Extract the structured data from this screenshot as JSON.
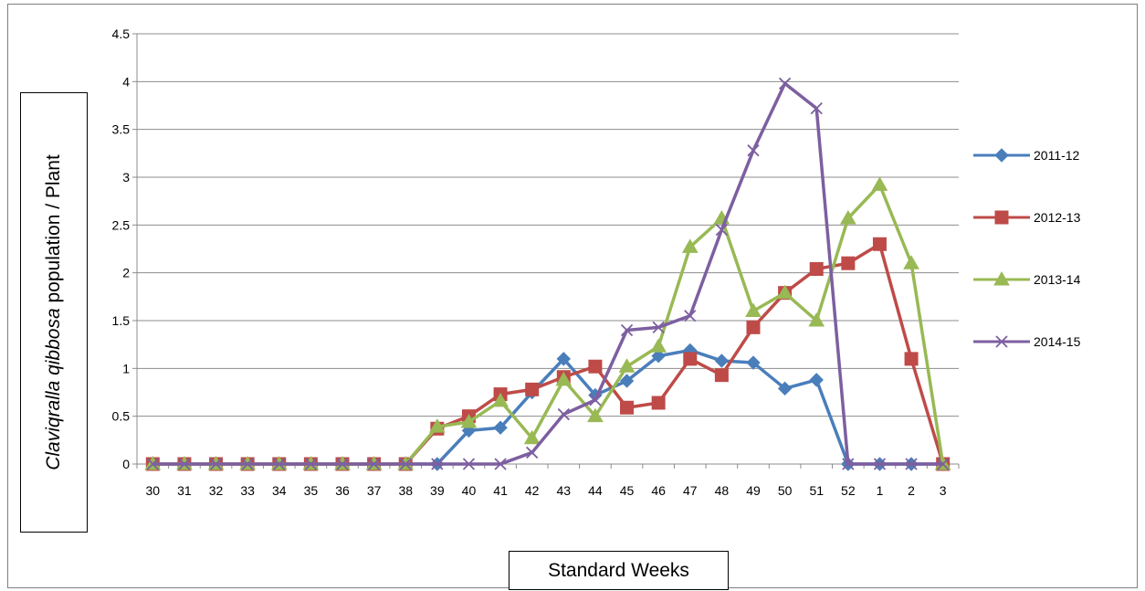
{
  "chart_data": {
    "type": "line",
    "xlabel": "Standard Weeks",
    "ylabel": {
      "species": "Claviqralla qibbosa",
      "rest": "population / Plant"
    },
    "categories": [
      "30",
      "31",
      "32",
      "33",
      "34",
      "35",
      "36",
      "37",
      "38",
      "39",
      "40",
      "41",
      "42",
      "43",
      "44",
      "45",
      "46",
      "47",
      "48",
      "49",
      "50",
      "51",
      "52",
      "1",
      "2",
      "3"
    ],
    "ylim": [
      0,
      4.5
    ],
    "yticks": [
      "0",
      "0.5",
      "1",
      "1.5",
      "2",
      "2.5",
      "3",
      "3.5",
      "4",
      "4.5"
    ],
    "grid": true,
    "legend_position": "right",
    "series": [
      {
        "name": "2011-12",
        "color": "#4a7ebb",
        "marker": "diamond",
        "values": [
          0,
          0,
          0,
          0,
          0,
          0,
          0,
          0,
          0,
          0,
          0.35,
          0.38,
          0.75,
          1.1,
          0.72,
          0.87,
          1.13,
          1.19,
          1.08,
          1.06,
          0.79,
          0.88,
          0,
          0,
          0,
          0
        ]
      },
      {
        "name": "2012-13",
        "color": "#be4b48",
        "marker": "square",
        "values": [
          0,
          0,
          0,
          0,
          0,
          0,
          0,
          0,
          0,
          0.37,
          0.5,
          0.73,
          0.78,
          0.91,
          1.02,
          0.59,
          0.64,
          1.1,
          0.93,
          1.43,
          1.79,
          2.04,
          2.1,
          2.3,
          1.1,
          0
        ]
      },
      {
        "name": "2013-14",
        "color": "#98b954",
        "marker": "triangle",
        "values": [
          0,
          0,
          0,
          0,
          0,
          0,
          0,
          0,
          0,
          0.39,
          0.44,
          0.66,
          0.27,
          0.88,
          0.5,
          1.02,
          1.23,
          2.27,
          2.57,
          1.6,
          1.79,
          1.5,
          2.57,
          2.92,
          2.1,
          0
        ]
      },
      {
        "name": "2014-15",
        "color": "#7d5fa0",
        "marker": "x",
        "values": [
          0,
          0,
          0,
          0,
          0,
          0,
          0,
          0,
          0,
          0,
          0,
          0,
          0.12,
          0.52,
          0.67,
          1.4,
          1.43,
          1.55,
          2.45,
          3.28,
          3.98,
          3.72,
          0,
          0,
          0,
          0
        ]
      }
    ]
  }
}
